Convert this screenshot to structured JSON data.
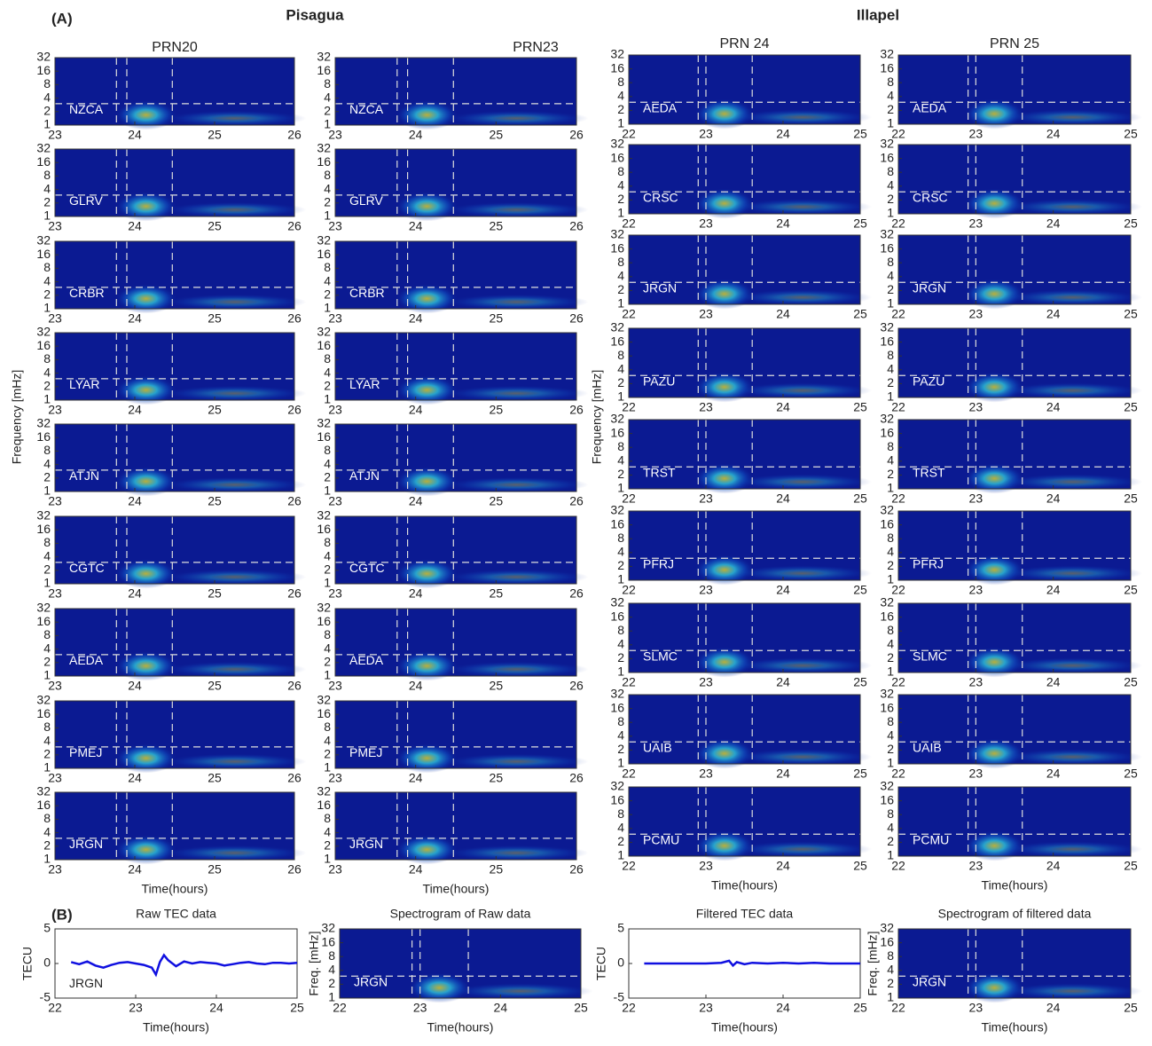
{
  "panel_a_label": "(A)",
  "panel_b_label": "(B)",
  "frequency_label": "Frequency [mHz]",
  "regions": [
    {
      "title": "Pisagua",
      "xlabel": "Time(hours)",
      "xlim": [
        23,
        26
      ],
      "xticks": [
        23,
        24,
        25,
        26
      ],
      "ylim": [
        1,
        32
      ],
      "yticks": [
        1,
        2,
        4,
        8,
        16,
        32
      ],
      "event_lines": [
        23.77,
        23.9,
        24.47
      ],
      "freq_line": 3,
      "columns": [
        {
          "title": "PRN20",
          "stations": [
            "NZCA",
            "GLRV",
            "CRBR",
            "LYAR",
            "ATJN",
            "CGTC",
            "AEDA",
            "PMEJ",
            "JRGN"
          ]
        },
        {
          "title": "PRN23",
          "stations": [
            "NZCA",
            "GLRV",
            "CRBR",
            "LYAR",
            "ATJN",
            "CGTC",
            "AEDA",
            "PMEJ",
            "JRGN"
          ]
        }
      ]
    },
    {
      "title": "Illapel",
      "xlabel": "Time(hours)",
      "xlim": [
        22,
        25
      ],
      "xticks": [
        22,
        23,
        24,
        25
      ],
      "ylim": [
        1,
        32
      ],
      "yticks": [
        1,
        2,
        4,
        8,
        16,
        32
      ],
      "event_lines": [
        22.9,
        23.0,
        23.6
      ],
      "freq_line": 3,
      "columns": [
        {
          "title": "PRN 24",
          "stations": [
            "AEDA",
            "CRSC",
            "JRGN",
            "PAZU",
            "TRST",
            "PFRJ",
            "SLMC",
            "UAIB",
            "PCMU"
          ]
        },
        {
          "title": "PRN 25",
          "stations": [
            "AEDA",
            "CRSC",
            "JRGN",
            "PAZU",
            "TRST",
            "PFRJ",
            "SLMC",
            "UAIB",
            "PCMU"
          ]
        }
      ]
    }
  ],
  "panels_b": [
    {
      "type": "line",
      "title": "Raw TEC data",
      "ylabel": "TECU",
      "xlabel": "Time(hours)",
      "station": "JRGN",
      "color": "#1010e0",
      "xlim": [
        22,
        25
      ],
      "xticks": [
        22,
        23,
        24,
        25
      ],
      "ylim": [
        -5,
        5
      ],
      "yticks": [
        -5,
        0,
        5
      ],
      "x": [
        22.2,
        22.3,
        22.4,
        22.5,
        22.6,
        22.7,
        22.8,
        22.9,
        23.0,
        23.1,
        23.2,
        23.25,
        23.3,
        23.35,
        23.4,
        23.5,
        23.6,
        23.7,
        23.8,
        23.9,
        24.0,
        24.1,
        24.2,
        24.3,
        24.4,
        24.5,
        24.6,
        24.7,
        24.8,
        24.9,
        25.0
      ],
      "values": [
        0.2,
        -0.1,
        0.3,
        -0.3,
        -0.6,
        -0.2,
        0.1,
        0.2,
        0,
        -0.2,
        -0.6,
        -1.6,
        0.2,
        1.2,
        0.5,
        -0.4,
        0.3,
        0,
        0.2,
        0.1,
        0,
        -0.3,
        -0.1,
        0.1,
        0.2,
        0,
        -0.1,
        0.1,
        0.1,
        0,
        0.1
      ]
    },
    {
      "type": "spectrogram",
      "title": "Spectrogram of Raw data",
      "ylabel": "Freq. [mHz]",
      "xlabel": "Time(hours)",
      "station": "JRGN",
      "xlim": [
        22,
        25
      ],
      "xticks": [
        22,
        23,
        24,
        25
      ],
      "ylim": [
        1,
        32
      ],
      "yticks": [
        1,
        2,
        4,
        8,
        16,
        32
      ],
      "event_lines": [
        22.9,
        23.0,
        23.6
      ],
      "freq_line": 3
    },
    {
      "type": "line",
      "title": "Filtered TEC data",
      "ylabel": "TECU",
      "xlabel": "Time(hours)",
      "color": "#1010e0",
      "xlim": [
        22,
        25
      ],
      "xticks": [
        22,
        23,
        24,
        25
      ],
      "ylim": [
        -5,
        5
      ],
      "yticks": [
        -5,
        0,
        5
      ],
      "x": [
        22.2,
        22.4,
        22.6,
        22.8,
        23.0,
        23.2,
        23.3,
        23.35,
        23.4,
        23.5,
        23.6,
        23.8,
        24.0,
        24.2,
        24.4,
        24.6,
        24.8,
        25.0
      ],
      "values": [
        0,
        0,
        0,
        0,
        0,
        0.1,
        0.4,
        -0.3,
        0.2,
        -0.1,
        0.1,
        0,
        0.1,
        0,
        0.1,
        0,
        0,
        0
      ]
    },
    {
      "type": "spectrogram",
      "title": "Spectrogram of filtered data",
      "ylabel": "Freq. [mHz]",
      "xlabel": "Time(hours)",
      "station": "JRGN",
      "xlim": [
        22,
        25
      ],
      "xticks": [
        22,
        23,
        24,
        25
      ],
      "ylim": [
        1,
        32
      ],
      "yticks": [
        1,
        2,
        4,
        8,
        16,
        32
      ],
      "event_lines": [
        22.9,
        23.0,
        23.6
      ],
      "freq_line": 3
    }
  ]
}
